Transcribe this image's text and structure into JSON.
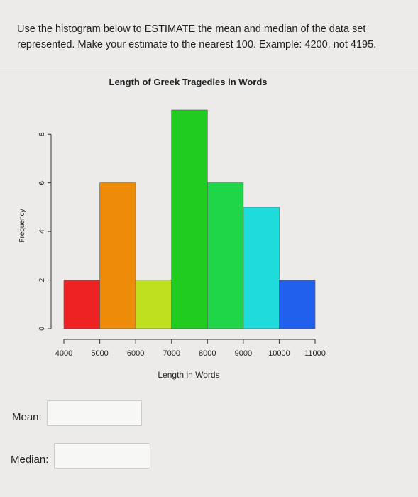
{
  "question": {
    "text_before": "Use the histogram below to ",
    "emphasis": "ESTIMATE",
    "text_after": " the mean and median of the data set represented.  Make your estimate to the nearest 100.  Example:  4200, not 4195."
  },
  "fields": {
    "mean_label": "Mean:",
    "mean_value": "",
    "median_label": "Median:",
    "median_value": ""
  },
  "chart_data": {
    "type": "bar",
    "title": "Length of Greek Tragedies in Words",
    "xlabel": "Length in Words",
    "ylabel": "Frequency",
    "bins": [
      {
        "start": 4000,
        "end": 5000,
        "frequency": 2,
        "color": "#ee2222"
      },
      {
        "start": 5000,
        "end": 6000,
        "frequency": 6,
        "color": "#ee8c0a"
      },
      {
        "start": 6000,
        "end": 7000,
        "frequency": 2,
        "color": "#bfe01f"
      },
      {
        "start": 7000,
        "end": 8000,
        "frequency": 9,
        "color": "#1fcc1f"
      },
      {
        "start": 8000,
        "end": 9000,
        "frequency": 6,
        "color": "#1fd648"
      },
      {
        "start": 9000,
        "end": 10000,
        "frequency": 5,
        "color": "#1fdcdc"
      },
      {
        "start": 10000,
        "end": 11000,
        "frequency": 2,
        "color": "#2060ec"
      }
    ],
    "x_ticks": [
      "4000",
      "5000",
      "6000",
      "7000",
      "8000",
      "9000",
      "10000",
      "11000"
    ],
    "y_ticks": [
      "0",
      "2",
      "4",
      "6",
      "8"
    ],
    "xlim": [
      4000,
      11000
    ],
    "ylim": [
      0,
      8
    ],
    "grid": false
  }
}
